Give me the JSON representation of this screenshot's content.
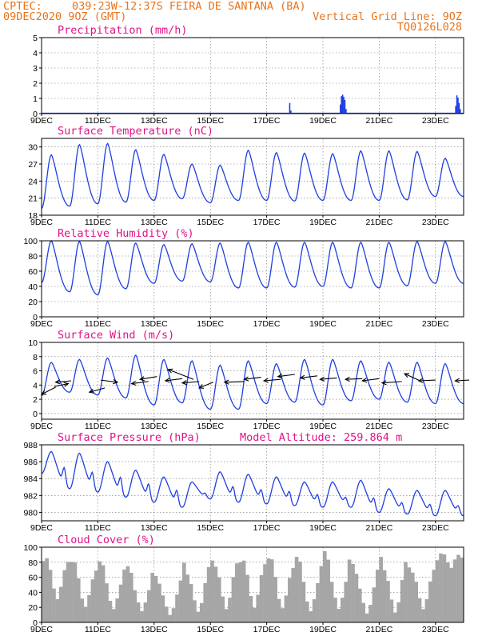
{
  "header": {
    "source": "CPTEC:",
    "location": "039:23W-12:37S  FEIRA DE SANTANA (BA)",
    "run": "09DEC2020 9OZ (GMT)",
    "grid_line": "Vertical Grid Line: 9OZ",
    "code": "TQ0126L028"
  },
  "colors": {
    "header": "#e8741c",
    "title": "#e0138a",
    "line": "#1f3fe0",
    "bar_precip": "#1f3fe0",
    "bar_cloud": "#a6a6a6",
    "wind_arrow": "#000000"
  },
  "x_axis": {
    "tick_labels": [
      "9DEC",
      "11DEC",
      "13DEC",
      "15DEC",
      "17DEC",
      "19DEC",
      "21DEC",
      "23DEC"
    ],
    "tick_days": [
      0,
      2,
      4,
      6,
      8,
      10,
      12,
      14
    ],
    "range_days": [
      0,
      15
    ]
  },
  "chart_data": [
    {
      "id": "precipitation",
      "type": "bar",
      "title": "Precipitation (mm/h)",
      "ylim": [
        0,
        5
      ],
      "yticks": [
        0,
        1,
        2,
        3,
        4,
        5
      ],
      "grid": true,
      "bars": [
        {
          "x": 8.82,
          "value": 0.7
        },
        {
          "x": 8.86,
          "value": 0.2
        },
        {
          "x": 10.62,
          "value": 0.6
        },
        {
          "x": 10.66,
          "value": 1.15
        },
        {
          "x": 10.7,
          "value": 1.25
        },
        {
          "x": 10.74,
          "value": 1.1
        },
        {
          "x": 10.78,
          "value": 0.9
        },
        {
          "x": 10.82,
          "value": 0.3
        },
        {
          "x": 14.72,
          "value": 0.5
        },
        {
          "x": 14.76,
          "value": 1.2
        },
        {
          "x": 14.8,
          "value": 1.05
        },
        {
          "x": 14.84,
          "value": 0.7
        },
        {
          "x": 14.88,
          "value": 0.3
        }
      ]
    },
    {
      "id": "temperature",
      "type": "line",
      "title": "Surface Temperature (nC)",
      "ylim": [
        18,
        31.5
      ],
      "yticks": [
        18,
        21,
        24,
        27,
        30
      ],
      "grid": true,
      "series": [
        {
          "maxima": [
            28.6,
            30.4,
            30.6,
            29.5,
            28.7,
            27.0,
            26.8,
            29.4,
            29.0,
            28.9,
            28.8,
            29.3,
            29.3,
            29.2,
            28.0
          ],
          "minima": [
            19.2,
            19.6,
            20.0,
            20.3,
            20.6,
            20.9,
            20.2,
            20.6,
            20.6,
            20.5,
            20.6,
            20.6,
            20.6,
            20.7,
            21.3
          ]
        }
      ]
    },
    {
      "id": "humidity",
      "type": "line",
      "title": "Relative Humidity (%)",
      "ylim": [
        0,
        100
      ],
      "yticks": [
        0,
        20,
        40,
        60,
        80,
        100
      ],
      "grid": true,
      "series": [
        {
          "maxima": [
            100,
            99,
            99,
            97,
            95,
            96,
            97,
            98,
            98,
            98,
            98,
            98,
            98,
            99,
            99
          ],
          "minima": [
            45,
            33,
            29,
            37,
            44,
            47,
            46,
            38,
            38,
            39,
            40,
            38,
            38,
            41,
            44
          ]
        }
      ]
    },
    {
      "id": "wind",
      "type": "line",
      "title": "Surface Wind (m/s)",
      "ylim": [
        -0.8,
        10
      ],
      "yticks": [
        0,
        2,
        4,
        6,
        8,
        10
      ],
      "grid": true,
      "series": [
        {
          "maxima": [
            7.2,
            7.6,
            7.8,
            8.2,
            7.6,
            7.4,
            6.8,
            7.4,
            7.0,
            7.6,
            7.6,
            7.4,
            7.2,
            7.2,
            7.0
          ],
          "minima": [
            2.5,
            3.0,
            2.6,
            2.2,
            1.2,
            1.5,
            0.6,
            0.6,
            1.4,
            1.6,
            1.2,
            1.8,
            2.0,
            1.6,
            1.4
          ]
        }
      ],
      "arrows": [
        {
          "x": 0.0,
          "y": 2.7,
          "dx": 0.5,
          "dy": 1.0
        },
        {
          "x": 0.5,
          "y": 4.4,
          "dx": 0.55,
          "dy": 0.2
        },
        {
          "x": 0.95,
          "y": 4.2,
          "dx": -0.5,
          "dy": -0.4
        },
        {
          "x": 1.7,
          "y": 3.0,
          "dx": 0.55,
          "dy": 0.6
        },
        {
          "x": 2.7,
          "y": 4.4,
          "dx": -0.6,
          "dy": 0.3
        },
        {
          "x": 3.2,
          "y": 4.2,
          "dx": 0.6,
          "dy": 0.3
        },
        {
          "x": 3.5,
          "y": 4.8,
          "dx": 0.6,
          "dy": 0.4
        },
        {
          "x": 4.4,
          "y": 4.6,
          "dx": 0.6,
          "dy": 0.3
        },
        {
          "x": 4.5,
          "y": 6.2,
          "dx": 0.9,
          "dy": -1.4
        },
        {
          "x": 5.0,
          "y": 4.3,
          "dx": 0.6,
          "dy": 0.2
        },
        {
          "x": 5.6,
          "y": 3.6,
          "dx": 0.5,
          "dy": 0.8
        },
        {
          "x": 6.5,
          "y": 4.4,
          "dx": 0.7,
          "dy": 0.1
        },
        {
          "x": 7.2,
          "y": 4.8,
          "dx": 0.6,
          "dy": 0.3
        },
        {
          "x": 7.9,
          "y": 4.6,
          "dx": 0.6,
          "dy": 0.2
        },
        {
          "x": 8.4,
          "y": 5.2,
          "dx": 0.6,
          "dy": 0.3
        },
        {
          "x": 9.2,
          "y": 5.0,
          "dx": 0.6,
          "dy": 0.3
        },
        {
          "x": 9.9,
          "y": 4.8,
          "dx": 0.6,
          "dy": 0.2
        },
        {
          "x": 10.8,
          "y": 4.8,
          "dx": 0.6,
          "dy": 0.1
        },
        {
          "x": 11.4,
          "y": 4.6,
          "dx": 0.6,
          "dy": 0.3
        },
        {
          "x": 12.1,
          "y": 4.3,
          "dx": 0.7,
          "dy": 0.2
        },
        {
          "x": 12.9,
          "y": 5.6,
          "dx": 0.5,
          "dy": -0.9
        },
        {
          "x": 13.4,
          "y": 4.6,
          "dx": 0.6,
          "dy": 0.1
        },
        {
          "x": 14.7,
          "y": 4.6,
          "dx": 0.5,
          "dy": 0.1
        }
      ]
    },
    {
      "id": "pressure",
      "type": "line",
      "title": "Surface Pressure (hPa)",
      "annotation": "Model Altitude: 259.864 m",
      "ylim": [
        979,
        988
      ],
      "yticks": [
        980,
        982,
        984,
        986,
        988
      ],
      "grid": true,
      "series": [
        {
          "maxima": [
            987.2,
            987.0,
            986.0,
            985.0,
            984.2,
            983.6,
            984.8,
            984.5,
            984.2,
            983.6,
            983.6,
            983.8,
            982.8,
            982.6,
            982.6
          ],
          "minima": [
            984.6,
            982.8,
            982.4,
            981.8,
            981.2,
            980.6,
            981.6,
            981.2,
            981.0,
            980.8,
            980.6,
            980.6,
            980.0,
            979.8,
            979.6
          ],
          "secondary": [
            985.8,
            985.2,
            984.6,
            983.8,
            983.0,
            982.4,
            983.4,
            983.0,
            982.8,
            982.4,
            982.0,
            982.0,
            981.4,
            981.2,
            981.0
          ]
        }
      ]
    },
    {
      "id": "cloud",
      "type": "bar",
      "title": "Cloud Cover (%)",
      "ylim": [
        0,
        100
      ],
      "yticks": [
        0,
        20,
        40,
        60,
        80,
        100
      ],
      "grid": true,
      "daily": [
        {
          "peak": 96,
          "low": 35
        },
        {
          "peak": 88,
          "low": 22
        },
        {
          "peak": 84,
          "low": 18
        },
        {
          "peak": 75,
          "low": 15
        },
        {
          "peak": 62,
          "low": 10
        },
        {
          "peak": 82,
          "low": 15
        },
        {
          "peak": 90,
          "low": 20
        },
        {
          "peak": 94,
          "low": 22
        },
        {
          "peak": 93,
          "low": 20
        },
        {
          "peak": 90,
          "low": 15
        },
        {
          "peak": 95,
          "low": 18
        },
        {
          "peak": 78,
          "low": 12
        },
        {
          "peak": 90,
          "low": 14
        },
        {
          "peak": 80,
          "low": 20
        },
        {
          "peak": 97,
          "low": 82
        }
      ]
    }
  ]
}
